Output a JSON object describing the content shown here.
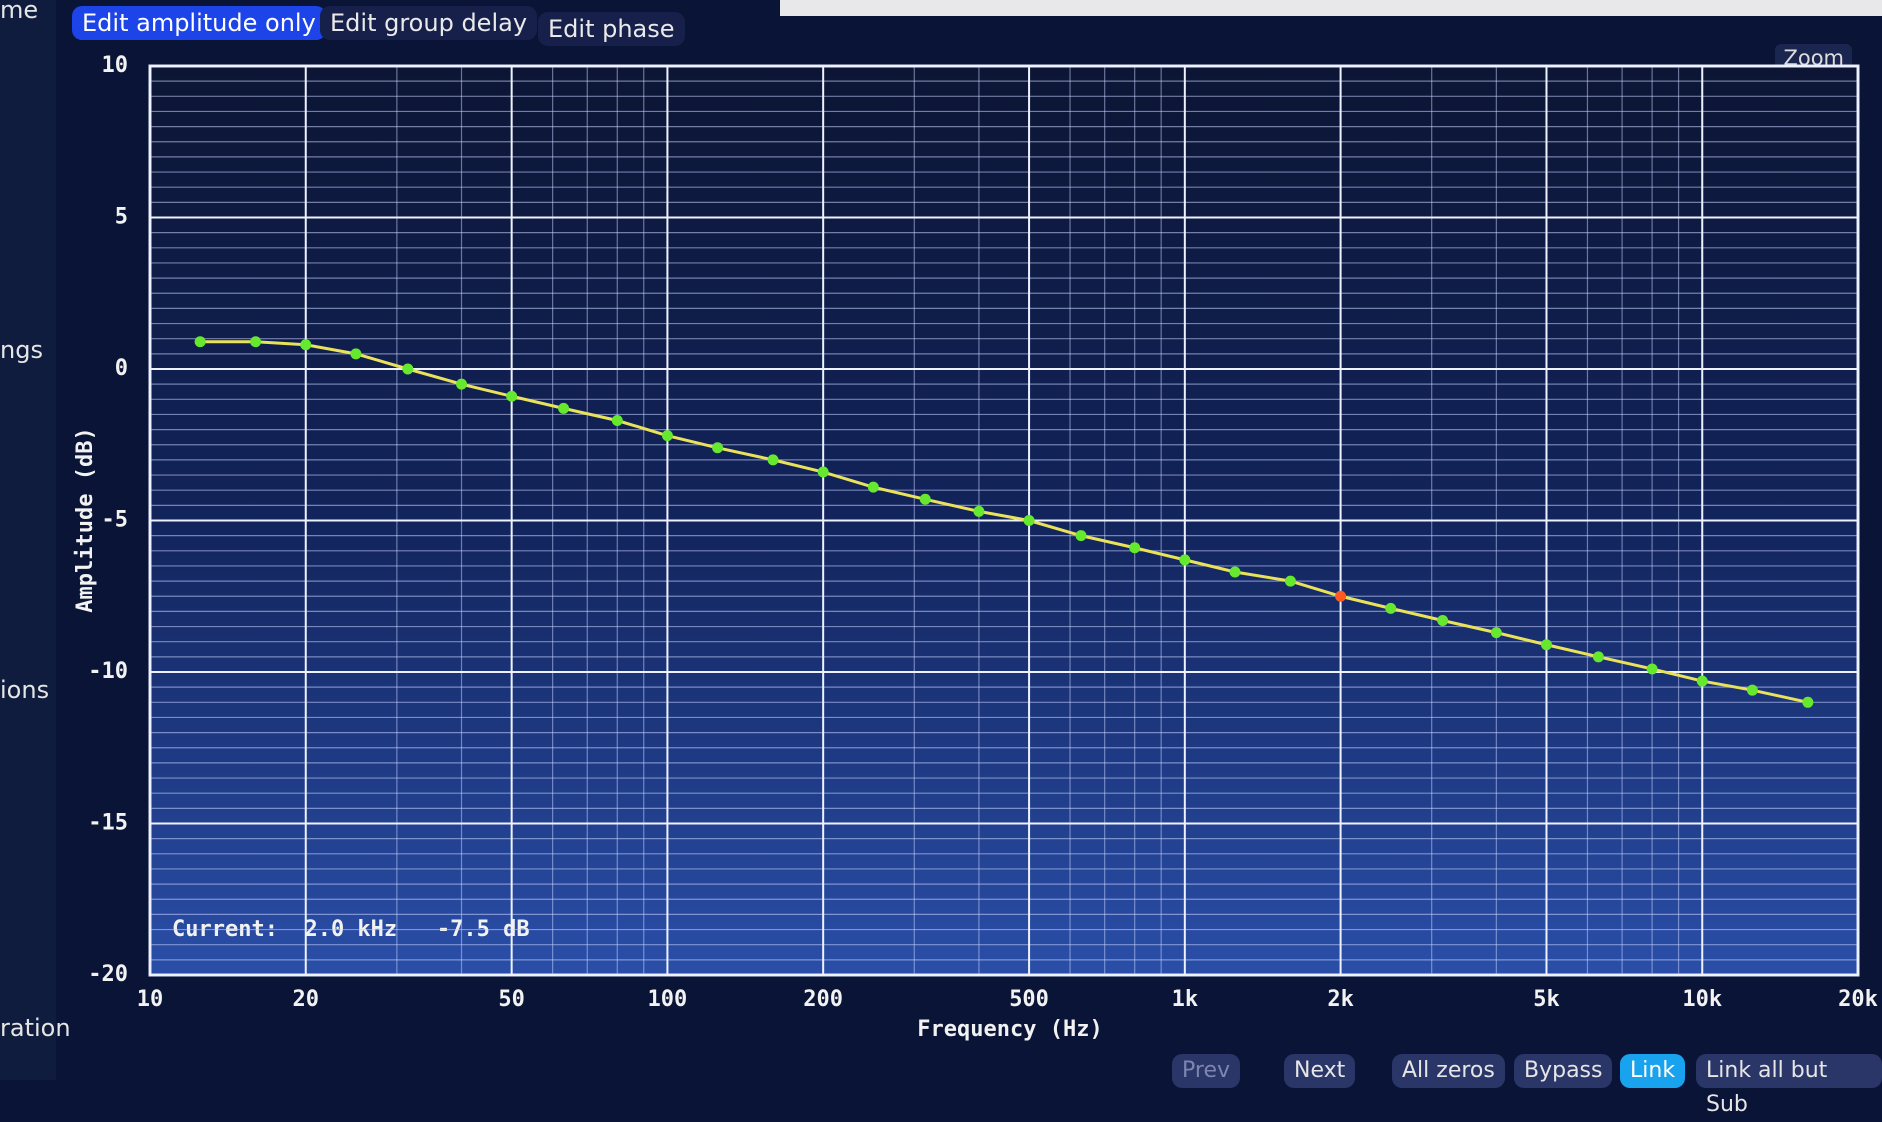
{
  "ui": {
    "sidebar": [
      "me",
      "ngs",
      "ions",
      "ration"
    ],
    "tabs": [
      "Edit amplitude only",
      "Edit group delay",
      "Edit phase"
    ],
    "zoom": "Zoom",
    "buttons": [
      "Prev",
      "Next",
      "All zeros",
      "Bypass",
      "Link",
      "Link all but Sub"
    ]
  },
  "chart_data": {
    "type": "line",
    "x_label": "Frequency (Hz)",
    "y_label": "Amplitude (dB)",
    "annotation": "Current:  2.0 kHz   -7.5 dB",
    "x_scale": "log",
    "xlim": [
      10,
      20000
    ],
    "xticks": [
      10,
      20,
      50,
      100,
      200,
      500,
      {
        "value": 1000,
        "label": "1k"
      },
      {
        "value": 2000,
        "label": "2k"
      },
      {
        "value": 5000,
        "label": "5k"
      },
      {
        "value": 10000,
        "label": "10k"
      },
      {
        "value": 20000,
        "label": "20k"
      }
    ],
    "ylim": [
      -20,
      10
    ],
    "yticks": [
      10,
      5,
      0,
      -5,
      -10,
      -15,
      -20
    ],
    "grid": true,
    "x": [
      12.5,
      16,
      20,
      25,
      31.5,
      40,
      50,
      63,
      80,
      100,
      125,
      160,
      200,
      250,
      315,
      400,
      500,
      630,
      800,
      1000,
      1250,
      1600,
      2000,
      2500,
      3150,
      4000,
      5000,
      6300,
      8000,
      10000,
      12500,
      16000
    ],
    "series": [
      {
        "color": "#e9e25a",
        "marker_color": "#66e82e",
        "values": [
          0.9,
          0.9,
          0.8,
          0.5,
          0,
          -0.5,
          -0.9,
          -1.3,
          -1.7,
          -2.2,
          -2.6,
          -3.0,
          -3.4,
          -3.9,
          -4.3,
          -4.7,
          -5.0,
          -5.5,
          -5.9,
          -6.3,
          -6.7,
          -7.0,
          -7.5,
          -7.9,
          -8.3,
          -8.7,
          -9.1,
          -9.5,
          -9.9,
          -10.3,
          -10.6,
          -11.0
        ]
      }
    ],
    "highlight": {
      "index": 22,
      "color": "#ff5a1e"
    }
  }
}
